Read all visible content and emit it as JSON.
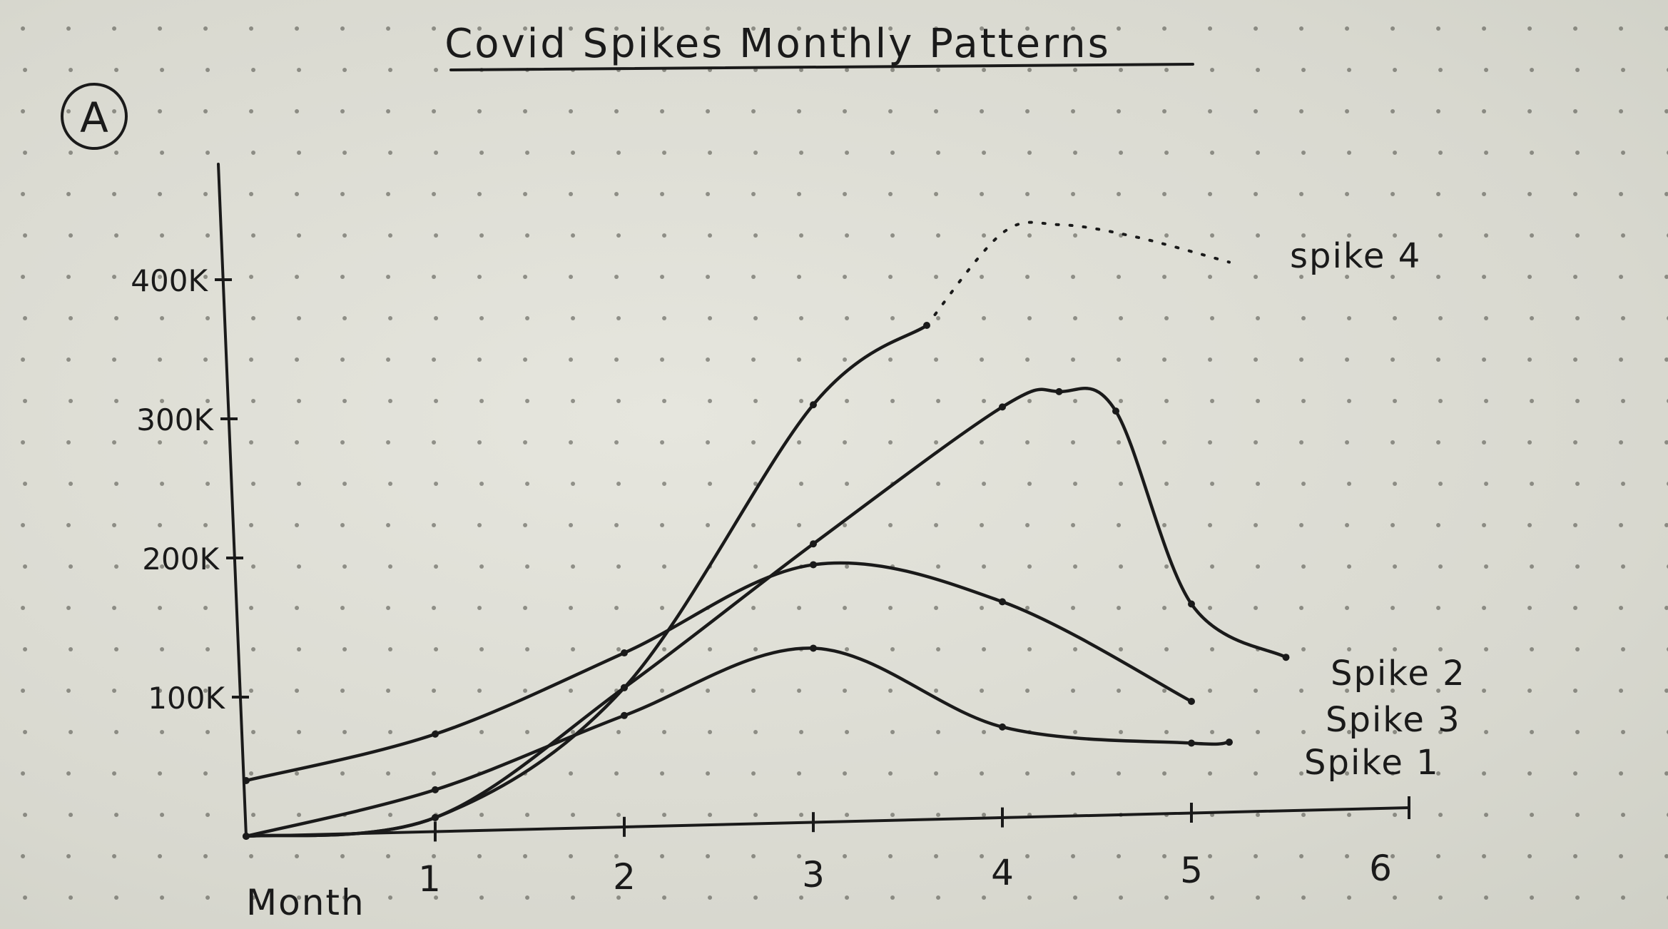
{
  "chart_data": {
    "type": "line",
    "badge": "A",
    "title": "Covid Spikes Monthly Patterns",
    "xlabel": "Month",
    "ylabel": "",
    "x_ticks": [
      "1",
      "2",
      "3",
      "4",
      "5",
      "6"
    ],
    "y_ticks": [
      "100K",
      "200K",
      "300K",
      "400K"
    ],
    "xlim": [
      0,
      6
    ],
    "ylim": [
      0,
      500000
    ],
    "grid": false,
    "series": [
      {
        "name": "Spike 1",
        "x": [
          0,
          1,
          2,
          3,
          4,
          5,
          5.2
        ],
        "y": [
          0,
          30000,
          80000,
          125000,
          65000,
          50000,
          50000
        ],
        "style": "solid"
      },
      {
        "name": "Spike 2",
        "x": [
          0,
          1,
          2,
          3,
          4,
          4.3,
          4.6,
          5,
          5.5
        ],
        "y": [
          0,
          10000,
          100000,
          200000,
          295000,
          305000,
          290000,
          150000,
          110000
        ],
        "style": "solid"
      },
      {
        "name": "Spike 3",
        "x": [
          0,
          1,
          2,
          3,
          4,
          5
        ],
        "y": [
          40000,
          70000,
          125000,
          185000,
          155000,
          80000
        ],
        "style": "solid"
      },
      {
        "name": "spike 4",
        "x": [
          0,
          1,
          2,
          3,
          3.6
        ],
        "y": [
          0,
          10000,
          100000,
          300000,
          355000
        ],
        "style": "solid"
      },
      {
        "name": "",
        "x": [
          3.6,
          4,
          4.3,
          4.7,
          5.2
        ],
        "y": [
          355000,
          420000,
          425000,
          415000,
          395000
        ],
        "style": "dotted"
      }
    ]
  }
}
